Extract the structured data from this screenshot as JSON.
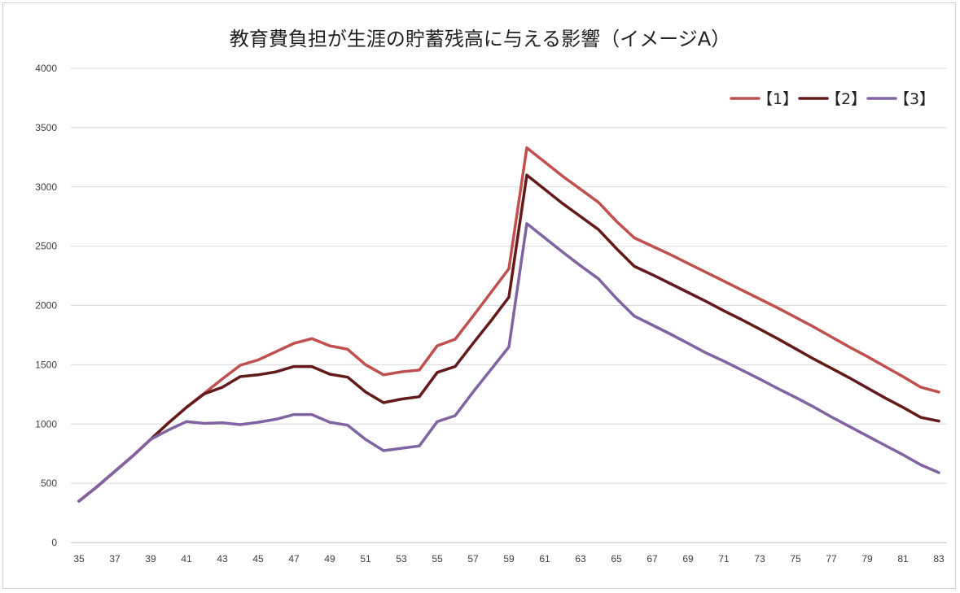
{
  "chart_data": {
    "type": "line",
    "title": "教育費負担が生涯の貯蓄残高に与える影響（イメージA）",
    "xlabel": "",
    "ylabel": "",
    "x": [
      35,
      36,
      37,
      38,
      39,
      40,
      41,
      42,
      43,
      44,
      45,
      46,
      47,
      48,
      49,
      50,
      51,
      52,
      53,
      54,
      55,
      56,
      57,
      58,
      59,
      60,
      61,
      62,
      63,
      64,
      65,
      66,
      67,
      68,
      69,
      70,
      71,
      72,
      73,
      74,
      75,
      76,
      77,
      78,
      79,
      80,
      81,
      82,
      83
    ],
    "x_tick_labels": [
      "35",
      "37",
      "39",
      "41",
      "43",
      "45",
      "47",
      "49",
      "51",
      "53",
      "55",
      "57",
      "59",
      "61",
      "63",
      "65",
      "67",
      "69",
      "71",
      "73",
      "75",
      "77",
      "79",
      "81",
      "83"
    ],
    "y_tick_labels": [
      "0",
      "500",
      "1000",
      "1500",
      "2000",
      "2500",
      "3000",
      "3500",
      "4000"
    ],
    "ylim": [
      0,
      4000
    ],
    "grid": true,
    "legend_position": "top-right",
    "series": [
      {
        "name": "【1】",
        "color": "#c0504d",
        "values": [
          350,
          470,
          600,
          730,
          870,
          1010,
          1140,
          1260,
          1380,
          1495,
          1540,
          1610,
          1680,
          1720,
          1660,
          1630,
          1500,
          1415,
          1440,
          1455,
          1660,
          1715,
          1910,
          2110,
          2310,
          3330,
          3210,
          3090,
          2980,
          2870,
          2710,
          2570,
          2500,
          2430,
          2355,
          2280,
          2205,
          2130,
          2055,
          1980,
          1900,
          1820,
          1735,
          1650,
          1570,
          1485,
          1400,
          1310,
          1270
        ]
      },
      {
        "name": "【2】",
        "color": "#641a1a",
        "values": [
          350,
          470,
          600,
          730,
          870,
          1010,
          1140,
          1255,
          1310,
          1400,
          1415,
          1440,
          1485,
          1485,
          1420,
          1395,
          1270,
          1180,
          1210,
          1230,
          1435,
          1485,
          1680,
          1870,
          2070,
          3100,
          2980,
          2860,
          2750,
          2640,
          2480,
          2330,
          2260,
          2185,
          2110,
          2035,
          1955,
          1880,
          1800,
          1720,
          1635,
          1550,
          1470,
          1390,
          1305,
          1220,
          1140,
          1055,
          1025
        ]
      },
      {
        "name": "【3】",
        "color": "#8064a2",
        "values": [
          350,
          470,
          600,
          730,
          870,
          950,
          1020,
          1005,
          1010,
          995,
          1015,
          1040,
          1080,
          1080,
          1015,
          990,
          870,
          775,
          795,
          815,
          1020,
          1070,
          1270,
          1460,
          1650,
          2690,
          2570,
          2450,
          2335,
          2225,
          2060,
          1910,
          1835,
          1760,
          1680,
          1600,
          1530,
          1455,
          1380,
          1300,
          1225,
          1145,
          1060,
          980,
          900,
          820,
          740,
          655,
          590
        ]
      }
    ]
  }
}
